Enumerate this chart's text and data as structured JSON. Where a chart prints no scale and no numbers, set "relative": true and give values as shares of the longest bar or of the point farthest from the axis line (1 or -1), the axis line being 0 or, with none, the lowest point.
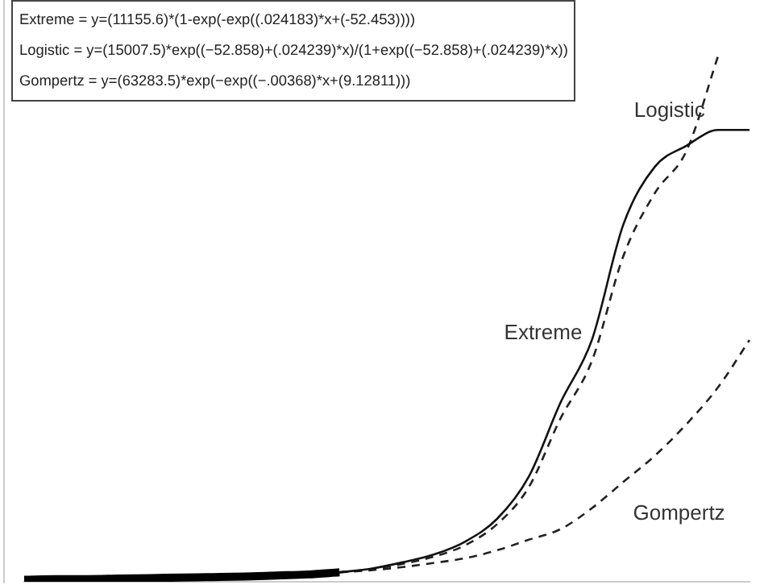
{
  "chart_data": {
    "type": "line",
    "relative": true,
    "legend": false,
    "marker": "none",
    "categories": [
      null,
      null,
      null,
      null,
      null,
      null,
      null,
      null,
      null,
      null,
      null,
      null,
      null,
      null,
      null,
      null,
      null,
      null,
      null,
      null,
      null,
      null,
      null,
      null
    ],
    "series": [
      {
        "color": "#000000",
        "line_style": "solid",
        "values": [
          0.004,
          0.005,
          0.005,
          0.006,
          0.007,
          0.008,
          0.009,
          0.01,
          0.012,
          0.014,
          0.018,
          null,
          null,
          null,
          null,
          null,
          null,
          null,
          null,
          null,
          null,
          null,
          null,
          null
        ]
      },
      {
        "name": "Extreme",
        "color": "#111111",
        "line_style": "solid",
        "values": [
          null,
          null,
          null,
          null,
          null,
          null,
          null,
          null,
          null,
          null,
          0.018,
          0.025,
          0.037,
          0.052,
          0.077,
          0.12,
          0.2,
          0.34,
          0.46,
          0.68,
          0.79,
          0.83,
          0.86,
          0.86
        ]
      },
      {
        "name": "Logistic",
        "color": "#222222",
        "line_style": "dashed",
        "values": [
          null,
          null,
          null,
          null,
          null,
          null,
          null,
          null,
          null,
          null,
          0.018,
          0.024,
          0.034,
          0.048,
          0.07,
          0.11,
          0.18,
          0.31,
          0.42,
          0.62,
          0.74,
          0.82,
          1.0,
          null
        ]
      },
      {
        "name": "Gompertz",
        "color": "#222222",
        "line_style": "dashed",
        "values": [
          null,
          null,
          null,
          null,
          null,
          null,
          null,
          null,
          null,
          null,
          0.018,
          0.022,
          0.028,
          0.036,
          0.045,
          0.06,
          0.08,
          0.1,
          0.14,
          0.19,
          0.24,
          0.3,
          0.37,
          0.46
        ]
      }
    ],
    "annotations": [
      "Extreme = y=(11155.6)*(1-exp(-exp((.024183)*x+(-52.453))))",
      "Logistic = y=(15007.5)*exp((−52.858)+(.024239)*x)/(1+exp((−52.858)+(.024239)*x))",
      "Gompertz = y=(63283.5)*exp(−exp((−.00368)*x+(9.12811)))"
    ]
  }
}
